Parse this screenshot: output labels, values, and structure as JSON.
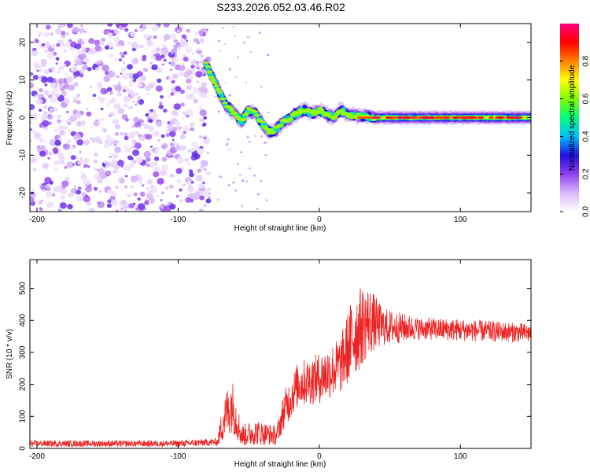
{
  "title": "S233.2026.052.03.46.R02",
  "colors": {
    "snr_line": "#ee2222",
    "colormap": [
      "#ffffff",
      "#d8b8f8",
      "#9040f0",
      "#2010e0",
      "#00c0ff",
      "#00ff80",
      "#80ff00",
      "#ffff00",
      "#ff8000",
      "#ff0000",
      "#ff0080"
    ]
  },
  "chart_data": [
    {
      "type": "heatmap",
      "xlabel": "Height of straight line (km)",
      "ylabel": "Frequency (Hz)",
      "xlim": [
        -205,
        150
      ],
      "ylim": [
        -25,
        25
      ],
      "x_ticks": [
        -200,
        -100,
        0,
        100
      ],
      "x_tick_labels": [
        "-200",
        "-100",
        "0",
        "100"
      ],
      "y_ticks": [
        -20,
        -10,
        0,
        10,
        20
      ],
      "y_tick_labels": [
        "-20",
        "-10",
        "0",
        "10",
        "20"
      ],
      "colorbar": {
        "label": "Normalized spectral amplitude",
        "range": [
          0,
          1
        ],
        "ticks": [
          0.0,
          0.2,
          0.4,
          0.6,
          0.8
        ],
        "tick_labels": [
          "0.0",
          "0.2",
          "0.4",
          "0.6",
          "0.8"
        ]
      },
      "ridge": [
        {
          "x": -80,
          "f": 14
        },
        {
          "x": -75,
          "f": 10
        },
        {
          "x": -70,
          "f": 6
        },
        {
          "x": -65,
          "f": 3
        },
        {
          "x": -60,
          "f": 1
        },
        {
          "x": -55,
          "f": -1
        },
        {
          "x": -50,
          "f": 2
        },
        {
          "x": -45,
          "f": 1
        },
        {
          "x": -40,
          "f": -2
        },
        {
          "x": -35,
          "f": -4
        },
        {
          "x": -30,
          "f": -3
        },
        {
          "x": -25,
          "f": -1
        },
        {
          "x": -20,
          "f": 0
        },
        {
          "x": -15,
          "f": 1.5
        },
        {
          "x": -10,
          "f": 2
        },
        {
          "x": -5,
          "f": 1
        },
        {
          "x": 0,
          "f": 2
        },
        {
          "x": 5,
          "f": 1
        },
        {
          "x": 10,
          "f": 0
        },
        {
          "x": 15,
          "f": 2
        },
        {
          "x": 20,
          "f": 1
        },
        {
          "x": 25,
          "f": 0.5
        },
        {
          "x": 30,
          "f": 0.5
        },
        {
          "x": 40,
          "f": 0
        },
        {
          "x": 60,
          "f": 0
        },
        {
          "x": 80,
          "f": 0
        },
        {
          "x": 100,
          "f": 0
        },
        {
          "x": 120,
          "f": 0
        },
        {
          "x": 150,
          "f": 0
        }
      ]
    },
    {
      "type": "line",
      "xlabel": "Height of straight line (km)",
      "ylabel": "SNR (10 * v/v)",
      "xlim": [
        -205,
        150
      ],
      "ylim": [
        0,
        590
      ],
      "x_ticks": [
        -200,
        -100,
        0,
        100
      ],
      "x_tick_labels": [
        "-200",
        "-100",
        "0",
        "100"
      ],
      "y_ticks": [
        0,
        100,
        200,
        300,
        400,
        500
      ],
      "y_tick_labels": [
        "0",
        "100",
        "200",
        "300",
        "400",
        "500"
      ],
      "envelope": [
        {
          "x": -205,
          "mean": 15,
          "spread": 10
        },
        {
          "x": -100,
          "mean": 15,
          "spread": 10
        },
        {
          "x": -72,
          "mean": 20,
          "spread": 12
        },
        {
          "x": -68,
          "mean": 90,
          "spread": 70
        },
        {
          "x": -62,
          "mean": 140,
          "spread": 90
        },
        {
          "x": -55,
          "mean": 40,
          "spread": 35
        },
        {
          "x": -45,
          "mean": 50,
          "spread": 40
        },
        {
          "x": -30,
          "mean": 40,
          "spread": 30
        },
        {
          "x": -25,
          "mean": 120,
          "spread": 60
        },
        {
          "x": -15,
          "mean": 200,
          "spread": 70
        },
        {
          "x": 0,
          "mean": 220,
          "spread": 80
        },
        {
          "x": 15,
          "mean": 260,
          "spread": 90
        },
        {
          "x": 25,
          "mean": 360,
          "spread": 140
        },
        {
          "x": 35,
          "mean": 400,
          "spread": 110
        },
        {
          "x": 45,
          "mean": 380,
          "spread": 60
        },
        {
          "x": 70,
          "mean": 375,
          "spread": 35
        },
        {
          "x": 100,
          "mean": 370,
          "spread": 35
        },
        {
          "x": 150,
          "mean": 360,
          "spread": 30
        }
      ]
    }
  ]
}
